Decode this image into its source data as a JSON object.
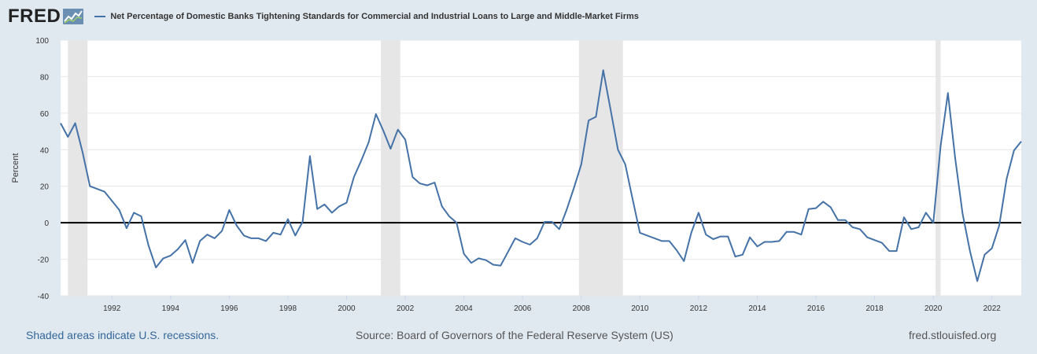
{
  "header": {
    "logo_text": "FRED",
    "legend_label": "Net Percentage of Domestic Banks Tightening Standards for Commercial and Industrial Loans to Large and Middle-Market Firms"
  },
  "footer": {
    "recession_note": "Shaded areas indicate U.S. recessions.",
    "source": "Source: Board of Governors of the Federal Reserve System (US)",
    "site": "fred.stlouisfed.org"
  },
  "colors": {
    "background": "#e1e9f0",
    "series": "#4572a7",
    "recession": "#e6e6e6"
  },
  "chart_data": {
    "type": "line",
    "title": "",
    "xlabel": "",
    "ylabel": "Percent",
    "xlim": [
      1990.25,
      2023.0
    ],
    "ylim": [
      -40,
      100
    ],
    "yticks": [
      100,
      80,
      60,
      40,
      20,
      0,
      -20,
      -40
    ],
    "xticks": [
      "1992",
      "1994",
      "1996",
      "1998",
      "2000",
      "2002",
      "2004",
      "2006",
      "2008",
      "2010",
      "2012",
      "2014",
      "2016",
      "2018",
      "2020",
      "2022"
    ],
    "grid": true,
    "legend": "top-left",
    "recessions": [
      [
        1990.5,
        1991.17
      ],
      [
        2001.17,
        2001.83
      ],
      [
        2007.92,
        2009.42
      ],
      [
        2020.08,
        2020.25
      ]
    ],
    "series": [
      {
        "name": "Net Percentage of Domestic Banks Tightening Standards for Commercial and Industrial Loans to Large and Middle-Market Firms",
        "x": [
          1990.25,
          1990.5,
          1990.75,
          1991.0,
          1991.25,
          1991.75,
          1992.25,
          1992.5,
          1992.75,
          1993.0,
          1993.25,
          1993.5,
          1993.75,
          1994.0,
          1994.25,
          1994.5,
          1994.75,
          1995.0,
          1995.25,
          1995.5,
          1995.75,
          1996.0,
          1996.25,
          1996.5,
          1996.75,
          1997.0,
          1997.25,
          1997.5,
          1997.75,
          1998.0,
          1998.25,
          1998.5,
          1998.75,
          1999.0,
          1999.25,
          1999.5,
          1999.75,
          2000.0,
          2000.25,
          2000.5,
          2000.75,
          2001.0,
          2001.25,
          2001.5,
          2001.75,
          2002.0,
          2002.25,
          2002.5,
          2002.75,
          2003.0,
          2003.25,
          2003.5,
          2003.75,
          2004.0,
          2004.25,
          2004.5,
          2004.75,
          2005.0,
          2005.25,
          2005.5,
          2005.75,
          2006.0,
          2006.25,
          2006.5,
          2006.75,
          2007.0,
          2007.25,
          2007.5,
          2007.75,
          2008.0,
          2008.25,
          2008.5,
          2008.75,
          2009.0,
          2009.25,
          2009.5,
          2009.75,
          2010.0,
          2010.25,
          2010.5,
          2010.75,
          2011.0,
          2011.25,
          2011.5,
          2011.75,
          2012.0,
          2012.25,
          2012.5,
          2012.75,
          2013.0,
          2013.25,
          2013.5,
          2013.75,
          2014.0,
          2014.25,
          2014.5,
          2014.75,
          2015.0,
          2015.25,
          2015.5,
          2015.75,
          2016.0,
          2016.25,
          2016.5,
          2016.75,
          2017.0,
          2017.25,
          2017.5,
          2017.75,
          2018.0,
          2018.25,
          2018.5,
          2018.75,
          2019.0,
          2019.25,
          2019.5,
          2019.75,
          2020.0,
          2020.25,
          2020.5,
          2020.75,
          2021.0,
          2021.25,
          2021.5,
          2021.75,
          2022.0,
          2022.25,
          2022.5,
          2022.75,
          2023.0
        ],
        "values": [
          54.5,
          47,
          54.5,
          38.5,
          20,
          17,
          7,
          -3,
          5.5,
          3.5,
          -12.5,
          -24.5,
          -19.5,
          -18,
          -14.5,
          -9.5,
          -22,
          -10,
          -6.5,
          -8.5,
          -4.5,
          7,
          -1.5,
          -7,
          -8.5,
          -8.5,
          -10,
          -5.5,
          -6.5,
          2,
          -7,
          0.5,
          36.5,
          7.5,
          10,
          5.5,
          9,
          11,
          25,
          34,
          44,
          59.5,
          50.5,
          40.5,
          51,
          45.5,
          25,
          21.5,
          20.5,
          22,
          9,
          3.5,
          0,
          -17,
          -22,
          -19.5,
          -20.5,
          -23,
          -23.5,
          -16,
          -8.5,
          -10.5,
          -12,
          -8.5,
          0.5,
          0.5,
          -3.5,
          7,
          19,
          32,
          56,
          58,
          83.5,
          62,
          40,
          32,
          13,
          -5.5,
          -7,
          -8.5,
          -10,
          -10,
          -15,
          -21,
          -5.5,
          5.5,
          -6.5,
          -9,
          -7.5,
          -7.5,
          -18.5,
          -17.5,
          -8,
          -13,
          -10.5,
          -10.5,
          -10,
          -5,
          -5,
          -6.5,
          7.5,
          8,
          11.5,
          8.5,
          1.5,
          1.5,
          -2.5,
          -3.5,
          -8,
          -9.5,
          -11,
          -15.5,
          -15.5,
          3,
          -3.5,
          -2.5,
          5.5,
          0,
          42,
          71,
          35,
          5,
          -15.5,
          -32,
          -17.5,
          -14,
          -1.5,
          24,
          39.5,
          44.5
        ]
      }
    ]
  }
}
